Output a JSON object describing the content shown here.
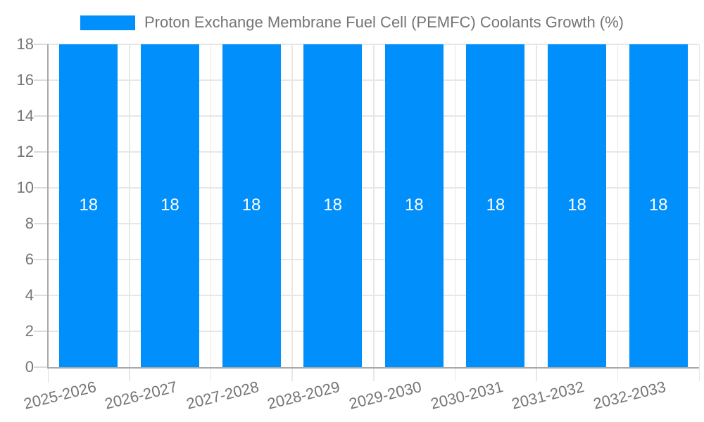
{
  "chart_data": {
    "type": "bar",
    "title": "",
    "categories": [
      "2025-2026",
      "2026-2027",
      "2027-2028",
      "2028-2029",
      "2029-2030",
      "2030-2031",
      "2031-2032",
      "2032-2033"
    ],
    "series": [
      {
        "name": "Proton Exchange Membrane Fuel Cell (PEMFC) Coolants Growth (%)",
        "color": "#008FFB",
        "values": [
          18,
          18,
          18,
          18,
          18,
          18,
          18,
          18
        ]
      }
    ],
    "show_values": true,
    "value_labels": [
      "18",
      "18",
      "18",
      "18",
      "18",
      "18",
      "18",
      "18"
    ],
    "xlabel": "",
    "ylabel": "",
    "ylim": [
      0,
      18
    ],
    "yticks": [
      0,
      2,
      4,
      6,
      8,
      10,
      12,
      14,
      16,
      18
    ],
    "grid": true,
    "legend_position": "top",
    "x_label_rotation_deg": -14,
    "colors": {
      "bar": "#008FFB",
      "axis_text": "#757575",
      "value_label": "#FFFFFF",
      "gridline": "#E7E7E7",
      "tick": "#DCDCDC",
      "axis_line": "#A9A9A9",
      "background": "#FFFFFF"
    }
  }
}
